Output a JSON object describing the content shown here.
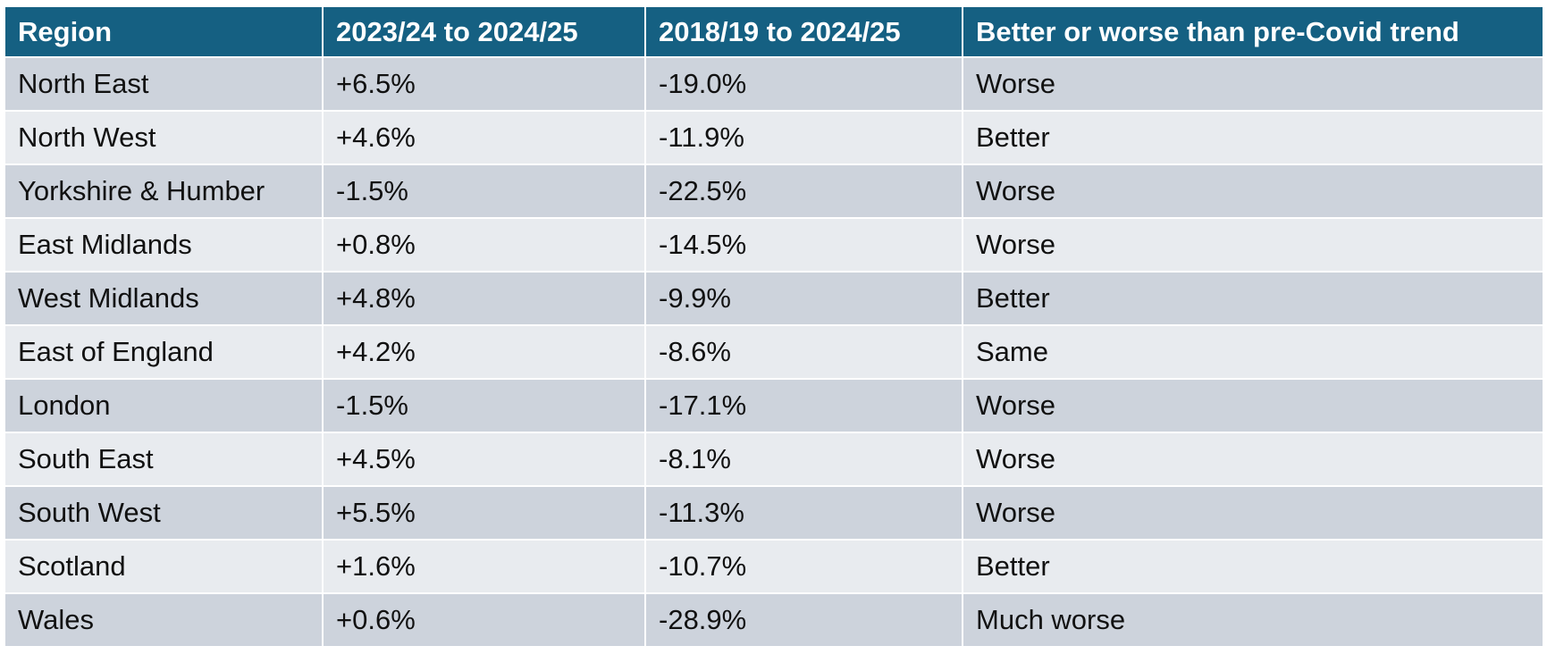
{
  "table": {
    "header": [
      "Region",
      "2023/24 to 2024/25",
      "2018/19 to 2024/25",
      "Better or worse than pre-Covid trend"
    ],
    "rows": [
      [
        "North East",
        "+6.5%",
        "-19.0%",
        "Worse"
      ],
      [
        "North West",
        "+4.6%",
        "-11.9%",
        "Better"
      ],
      [
        "Yorkshire & Humber",
        "-1.5%",
        "-22.5%",
        "Worse"
      ],
      [
        "East Midlands",
        "+0.8%",
        "-14.5%",
        "Worse"
      ],
      [
        "West Midlands",
        "+4.8%",
        "-9.9%",
        "Better"
      ],
      [
        "East of England",
        "+4.2%",
        "-8.6%",
        "Same"
      ],
      [
        "London",
        "-1.5%",
        "-17.1%",
        "Worse"
      ],
      [
        "South East",
        "+4.5%",
        "-8.1%",
        "Worse"
      ],
      [
        "South West",
        "+5.5%",
        "-11.3%",
        "Worse"
      ],
      [
        "Scotland",
        "+1.6%",
        "-10.7%",
        "Better"
      ],
      [
        "Wales",
        "+0.6%",
        "-28.9%",
        "Much worse"
      ]
    ]
  }
}
